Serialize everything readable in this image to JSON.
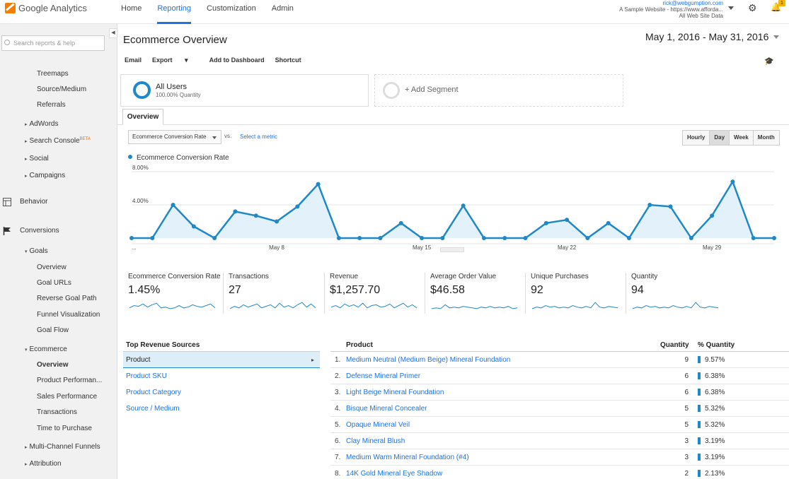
{
  "app": {
    "name": "Google Analytics"
  },
  "topnav": {
    "tabs": [
      "Home",
      "Reporting",
      "Customization",
      "Admin"
    ],
    "active": "Reporting"
  },
  "account": {
    "email": "rick@webgumption.com",
    "property": "A Sample Website - https://www.afforda...",
    "view": "All Web Site Data",
    "notification_count": "1"
  },
  "sidebar": {
    "search_placeholder": "Search reports & help",
    "items": {
      "treemaps": "Treemaps",
      "source_medium": "Source/Medium",
      "referrals": "Referrals",
      "adwords": "AdWords",
      "search_console": "Search Console",
      "search_console_badge": "BETA",
      "social": "Social",
      "campaigns": "Campaigns",
      "behavior": "Behavior",
      "conversions": "Conversions",
      "goals": "Goals",
      "goals_overview": "Overview",
      "goal_urls": "Goal URLs",
      "reverse_goal_path": "Reverse Goal Path",
      "funnel_visualization": "Funnel Visualization",
      "goal_flow": "Goal Flow",
      "ecommerce": "Ecommerce",
      "ecommerce_overview": "Overview",
      "product_performance": "Product Performan...",
      "sales_performance": "Sales Performance",
      "transactions": "Transactions",
      "time_to_purchase": "Time to Purchase",
      "multi_channel_funnels": "Multi-Channel Funnels",
      "attribution": "Attribution"
    }
  },
  "page": {
    "title": "Ecommerce Overview",
    "date_start": "May 1, 2016",
    "date_sep": "-",
    "date_end": "May 31, 2016"
  },
  "toolbar": {
    "email": "Email",
    "export": "Export",
    "add_to_dashboard": "Add to Dashboard",
    "shortcut": "Shortcut"
  },
  "segments": {
    "all_users": "All Users",
    "all_users_sub": "100.00% Quantity",
    "add": "+ Add Segment"
  },
  "overview_tab": "Overview",
  "metric_picker": {
    "selected": "Ecommerce Conversion Rate",
    "vs": "vs.",
    "select_metric": "Select a metric"
  },
  "granularity": {
    "options": [
      "Hourly",
      "Day",
      "Week",
      "Month"
    ],
    "active": "Day"
  },
  "chart_data": {
    "type": "area",
    "title": "",
    "series": [
      {
        "name": "Ecommerce Conversion Rate",
        "values": [
          0,
          0,
          4.0,
          1.4,
          0,
          3.2,
          2.7,
          2.0,
          3.8,
          6.5,
          0,
          0,
          0,
          1.8,
          0,
          0,
          3.9,
          0,
          0,
          0,
          1.8,
          2.2,
          0,
          1.8,
          0,
          4.0,
          3.8,
          0,
          2.7,
          6.8,
          0,
          0
        ]
      }
    ],
    "x": [
      "...",
      "May 2",
      "May 3",
      "May 4",
      "May 5",
      "May 6",
      "May 7",
      "May 8",
      "May 9",
      "May 10",
      "May 11",
      "May 12",
      "May 13",
      "May 14",
      "May 15",
      "May 16",
      "May 17",
      "May 18",
      "May 19",
      "May 20",
      "May 21",
      "May 22",
      "May 23",
      "May 24",
      "May 25",
      "May 26",
      "May 27",
      "May 28",
      "May 29",
      "May 30",
      "May 31",
      ""
    ],
    "x_tick_labels": [
      {
        "label": "...",
        "index": 0
      },
      {
        "label": "May 8",
        "index": 7
      },
      {
        "label": "May 15",
        "index": 14
      },
      {
        "label": "May 22",
        "index": 21
      },
      {
        "label": "May 29",
        "index": 28
      }
    ],
    "y_tick_labels": [
      "8.00%",
      "4.00%"
    ],
    "ylim": [
      0,
      8
    ],
    "grid": true,
    "color": "#1e88c8"
  },
  "kpis": [
    {
      "label": "Ecommerce Conversion Rate",
      "value": "1.45%",
      "spark": [
        0.2,
        0.5,
        0.4,
        0.7,
        0.3,
        0.6,
        0.8,
        0.2,
        0.3,
        0.1,
        0.2,
        0.5,
        0.2,
        0.3,
        0.6,
        0.4,
        0.3,
        0.5,
        0.7,
        0.2
      ]
    },
    {
      "label": "Transactions",
      "value": "27",
      "spark": [
        0.1,
        0.4,
        0.2,
        0.6,
        0.3,
        0.5,
        0.7,
        0.2,
        0.4,
        0.6,
        0.2,
        0.8,
        0.3,
        0.5,
        0.2,
        0.6,
        0.9,
        0.3,
        0.7,
        0.2
      ]
    },
    {
      "label": "Revenue",
      "value": "$1,257.70",
      "spark": [
        0.3,
        0.5,
        0.2,
        0.7,
        0.4,
        0.6,
        0.3,
        0.8,
        0.2,
        0.5,
        0.6,
        0.3,
        0.4,
        0.7,
        0.2,
        0.5,
        0.8,
        0.3,
        0.6,
        0.2
      ]
    },
    {
      "label": "Average Order Value",
      "value": "$46.58",
      "spark": [
        0.1,
        0.2,
        0.1,
        0.6,
        0.2,
        0.3,
        0.2,
        0.4,
        0.3,
        0.2,
        0.1,
        0.3,
        0.2,
        0.4,
        0.2,
        0.3,
        0.2,
        0.4,
        0.1,
        0.2
      ]
    },
    {
      "label": "Unique Purchases",
      "value": "92",
      "spark": [
        0.1,
        0.3,
        0.2,
        0.5,
        0.3,
        0.4,
        0.2,
        0.3,
        0.2,
        0.5,
        0.3,
        0.2,
        0.4,
        0.2,
        0.9,
        0.3,
        0.2,
        0.4,
        0.3,
        0.2
      ]
    },
    {
      "label": "Quantity",
      "value": "94",
      "spark": [
        0.1,
        0.3,
        0.2,
        0.5,
        0.3,
        0.4,
        0.2,
        0.3,
        0.2,
        0.5,
        0.3,
        0.2,
        0.4,
        0.2,
        0.9,
        0.3,
        0.2,
        0.4,
        0.3,
        0.2
      ]
    }
  ],
  "top_revenue_sources": {
    "title": "Top Revenue Sources",
    "items": [
      "Product",
      "Product SKU",
      "Product Category",
      "Source / Medium"
    ],
    "selected": "Product"
  },
  "product_table": {
    "headers": {
      "product": "Product",
      "quantity": "Quantity",
      "pct_quantity": "% Quantity"
    },
    "rows": [
      {
        "idx": "1.",
        "name": "Medium Neutral (Medium Beige) Mineral Foundation",
        "qty": "9",
        "pct": "9.57%"
      },
      {
        "idx": "2.",
        "name": "Defense Mineral Primer",
        "qty": "6",
        "pct": "6.38%"
      },
      {
        "idx": "3.",
        "name": "Light Beige Mineral Foundation",
        "qty": "6",
        "pct": "6.38%"
      },
      {
        "idx": "4.",
        "name": "Bisque Mineral Concealer",
        "qty": "5",
        "pct": "5.32%"
      },
      {
        "idx": "5.",
        "name": "Opaque Mineral Veil",
        "qty": "5",
        "pct": "5.32%"
      },
      {
        "idx": "6.",
        "name": "Clay Mineral Blush",
        "qty": "3",
        "pct": "3.19%"
      },
      {
        "idx": "7.",
        "name": "Medium Warm Mineral Foundation (#4)",
        "qty": "3",
        "pct": "3.19%"
      },
      {
        "idx": "8.",
        "name": "14K Gold Mineral Eye Shadow",
        "qty": "2",
        "pct": "2.13%"
      }
    ]
  }
}
